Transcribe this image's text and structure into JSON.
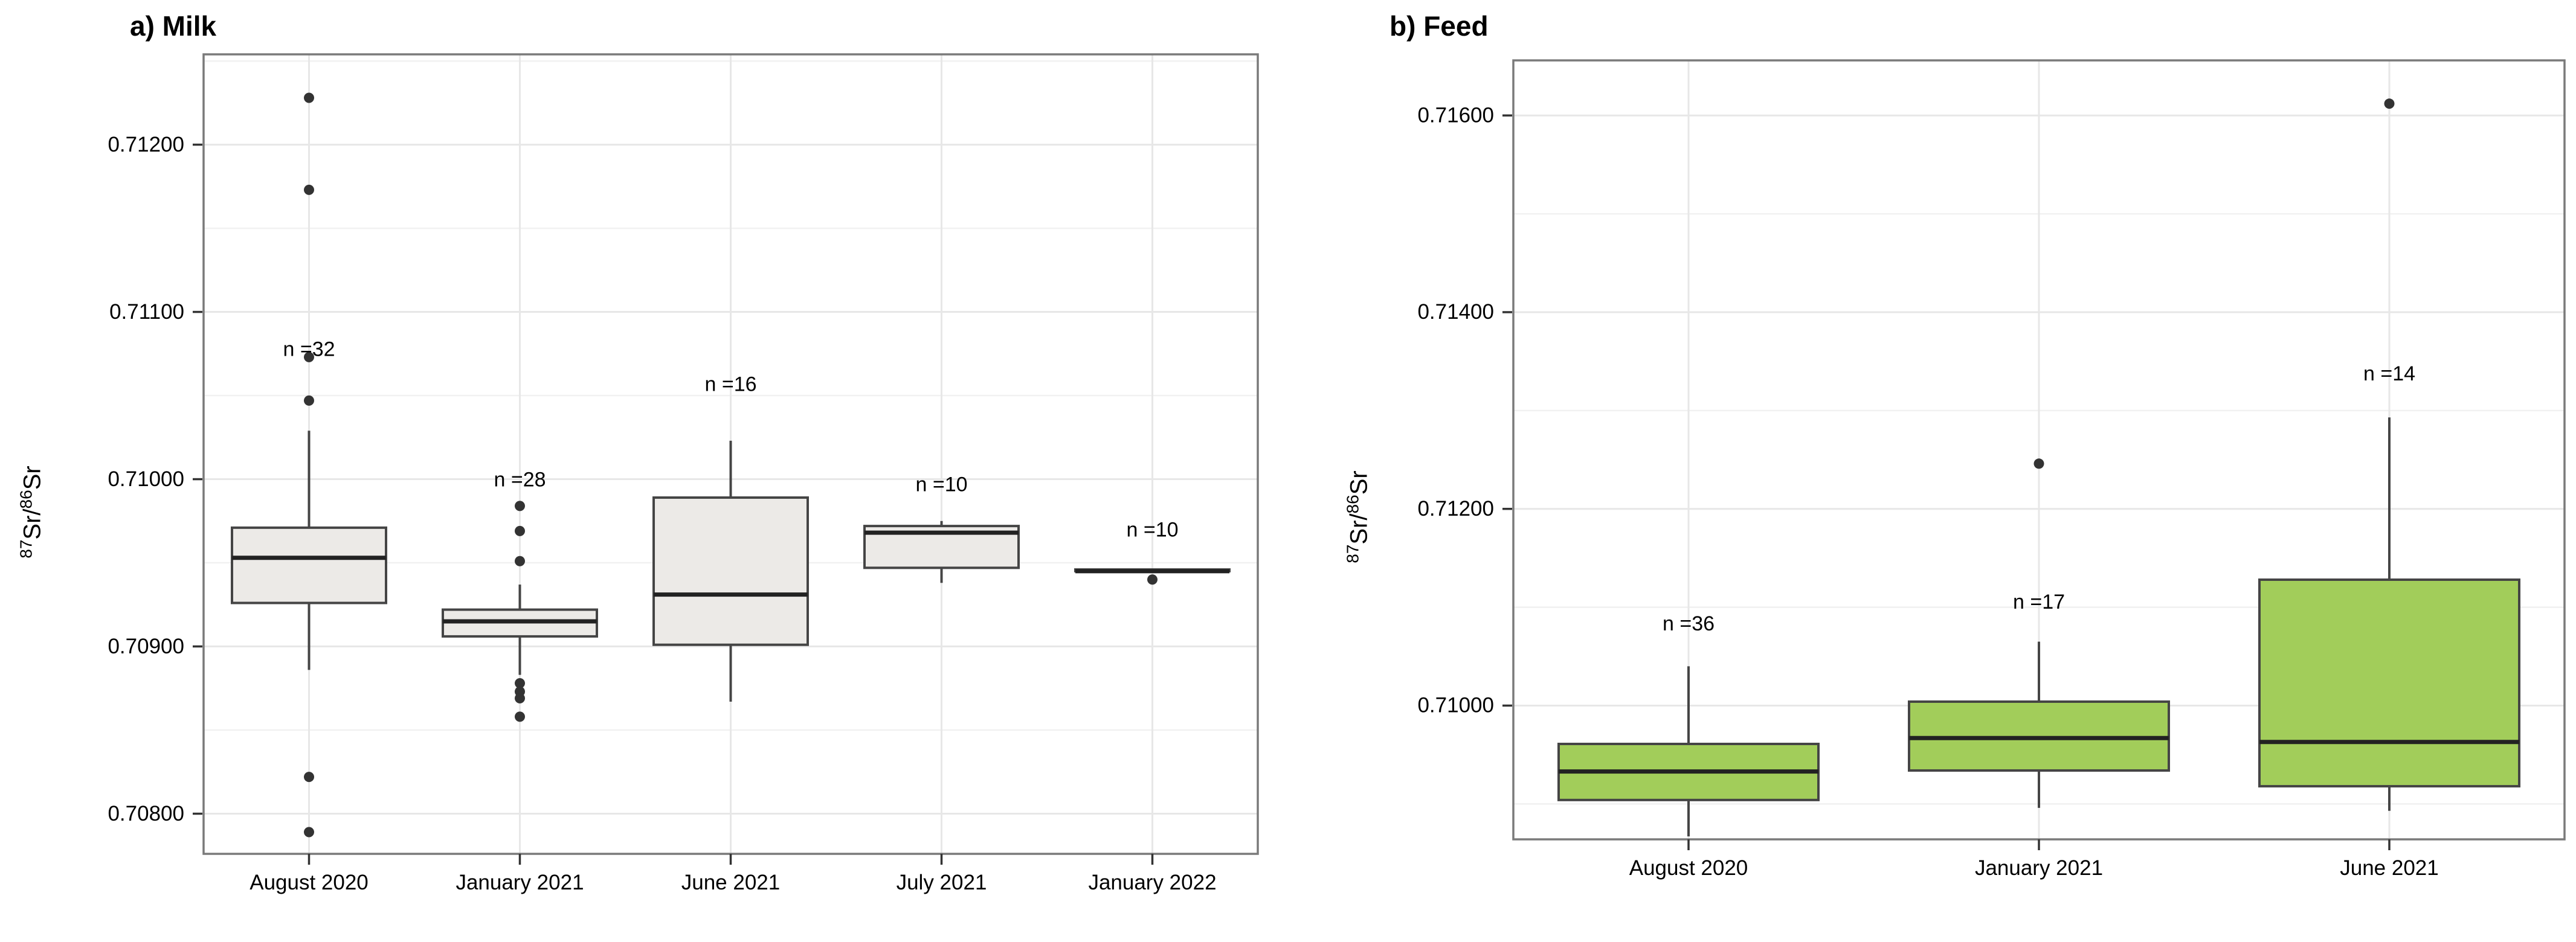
{
  "figure": {
    "background": "#ffffff",
    "panel_count": 2
  },
  "colors": {
    "milk_box_fill": "#ECEAE7",
    "feed_box_fill": "#A2CD5A",
    "box_stroke": "#454545",
    "median_line": "#222222",
    "outlier_dot": "#333333",
    "major_gridline": "#E7E7E7",
    "minor_gridline": "#F1F1F1",
    "panel_border": "#7A7A7A",
    "tick_mark": "#333333",
    "text": "#000000"
  },
  "chart_data": [
    {
      "type": "boxplot",
      "panel_label": "a",
      "title": "a) Milk",
      "ylabel": "87Sr/86Sr",
      "ylabel_parts": {
        "sup1": "87",
        "mid": "Sr/",
        "sup2": "86",
        "end": "Sr"
      },
      "ylim": [
        0.70776,
        0.71254
      ],
      "grid": true,
      "legend": "none",
      "box_fill": "#ECEAE7",
      "yticks": [
        {
          "value": 0.712,
          "label": "0.71200"
        },
        {
          "value": 0.711,
          "label": "0.71100"
        },
        {
          "value": 0.71,
          "label": "0.71000"
        },
        {
          "value": 0.709,
          "label": "0.70900"
        },
        {
          "value": 0.708,
          "label": "0.70800"
        }
      ],
      "minor_ticks": [
        0.7125,
        0.7115,
        0.7105,
        0.7095,
        0.7085
      ],
      "categories": [
        "August 2020",
        "January 2021",
        "June 2021",
        "July 2021",
        "January 2022"
      ],
      "series": [
        {
          "category": "August 2020",
          "n": 32,
          "n_label": "n =32",
          "n_label_y": 0.71077,
          "whisker_low": 0.70886,
          "q1": 0.70926,
          "median": 0.70953,
          "q3": 0.70971,
          "whisker_high": 0.71029,
          "outliers": [
            0.71228,
            0.71173,
            0.71073,
            0.71047,
            0.70822,
            0.70789
          ]
        },
        {
          "category": "January 2021",
          "n": 28,
          "n_label": "n =28",
          "n_label_y": 0.70999,
          "whisker_low": 0.70883,
          "q1": 0.70906,
          "median": 0.70915,
          "q3": 0.70922,
          "whisker_high": 0.70937,
          "outliers": [
            0.70984,
            0.70969,
            0.70951,
            0.70878,
            0.70873,
            0.70869,
            0.70858
          ]
        },
        {
          "category": "June 2021",
          "n": 16,
          "n_label": "n =16",
          "n_label_y": 0.71056,
          "whisker_low": 0.70867,
          "q1": 0.70901,
          "median": 0.70931,
          "q3": 0.70989,
          "whisker_high": 0.71023,
          "outliers": []
        },
        {
          "category": "July 2021",
          "n": 10,
          "n_label": "n =10",
          "n_label_y": 0.70996,
          "whisker_low": 0.70938,
          "q1": 0.70947,
          "median": 0.70968,
          "q3": 0.70972,
          "whisker_high": 0.70975,
          "outliers": []
        },
        {
          "category": "January 2022",
          "n": 10,
          "n_label": "n =10",
          "n_label_y": 0.70969,
          "whisker_low": 0.70945,
          "q1": 0.70945,
          "median": 0.70945,
          "q3": 0.70946,
          "whisker_high": 0.70946,
          "outliers": [
            0.7094
          ]
        }
      ]
    },
    {
      "type": "boxplot",
      "panel_label": "b",
      "title": "b) Feed",
      "ylabel": "87Sr/86Sr",
      "ylabel_parts": {
        "sup1": "87",
        "mid": "Sr/",
        "sup2": "86",
        "end": "Sr"
      },
      "ylim": [
        0.70864,
        0.71656
      ],
      "grid": true,
      "legend": "none",
      "box_fill": "#A2CD5A",
      "yticks": [
        {
          "value": 0.716,
          "label": "0.71600"
        },
        {
          "value": 0.714,
          "label": "0.71400"
        },
        {
          "value": 0.712,
          "label": "0.71200"
        },
        {
          "value": 0.71,
          "label": "0.71000"
        }
      ],
      "minor_ticks": [
        0.715,
        0.713,
        0.711,
        0.709
      ],
      "categories": [
        "August 2020",
        "January 2021",
        "June 2021"
      ],
      "series": [
        {
          "category": "August 2020",
          "n": 36,
          "n_label": "n =36",
          "n_label_y": 0.71082,
          "whisker_low": 0.70867,
          "q1": 0.70904,
          "median": 0.70933,
          "q3": 0.70961,
          "whisker_high": 0.7104,
          "outliers": []
        },
        {
          "category": "January 2021",
          "n": 17,
          "n_label": "n =17",
          "n_label_y": 0.71104,
          "whisker_low": 0.70896,
          "q1": 0.70934,
          "median": 0.70967,
          "q3": 0.71004,
          "whisker_high": 0.71065,
          "outliers": [
            0.71246
          ]
        },
        {
          "category": "June 2021",
          "n": 14,
          "n_label": "n =14",
          "n_label_y": 0.71336,
          "whisker_low": 0.70893,
          "q1": 0.70918,
          "median": 0.70963,
          "q3": 0.71128,
          "whisker_high": 0.71293,
          "outliers": [
            0.71612
          ]
        }
      ]
    }
  ]
}
